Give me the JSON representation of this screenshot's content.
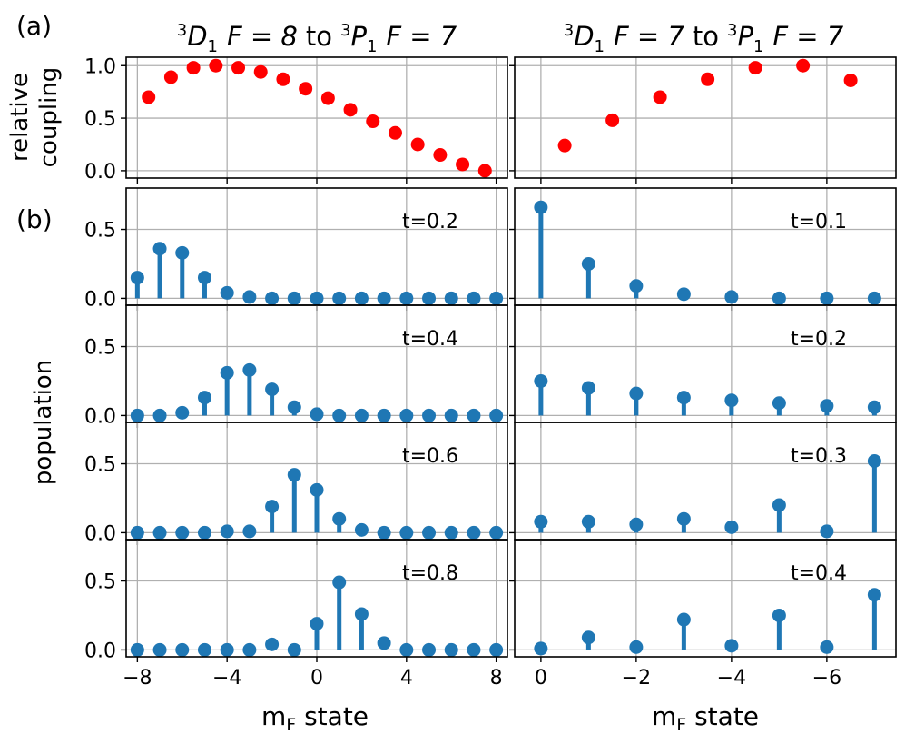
{
  "panel_letters": {
    "a": "(a)",
    "b": "(b)"
  },
  "colors": {
    "coupling": "#ff0000",
    "population": "#1f77b4",
    "grid": "#b0b0b0",
    "axis": "#000000"
  },
  "left_title": {
    "sup1": "3",
    "d": "D",
    "sub1": "1",
    "f1": "F = 8",
    "to": "to",
    "sup2": "3",
    "p": "P",
    "sub2": "1",
    "f2": "F = 7"
  },
  "right_title": {
    "sup1": "3",
    "d": "D",
    "sub1": "1",
    "f1": "F = 7",
    "to": "to",
    "sup2": "3",
    "p": "P",
    "sub2": "1",
    "f2": "F = 7"
  },
  "ylabel_coupling": {
    "line1": "relative",
    "line2": "coupling"
  },
  "ylabel_population": "population",
  "xlabel": {
    "m": "m",
    "sub": "F",
    "rest": " state"
  },
  "chart_data": [
    {
      "id": "a-left",
      "type": "scatter",
      "title": "3D1 F=8 to 3P1 F=7",
      "ylabel": "relative coupling",
      "xlim": [
        -8.5,
        8.5
      ],
      "ylim": [
        -0.07,
        1.08
      ],
      "xticks": [
        -8,
        -4,
        0,
        4,
        8
      ],
      "yticks": [
        0.0,
        0.5,
        1.0
      ],
      "yticklabels": [
        "0.0",
        "0.5",
        "1.0"
      ],
      "x": [
        -7.5,
        -6.5,
        -5.5,
        -4.5,
        -3.5,
        -2.5,
        -1.5,
        -0.5,
        0.5,
        1.5,
        2.5,
        3.5,
        4.5,
        5.5,
        6.5,
        7.5
      ],
      "y": [
        0.7,
        0.89,
        0.98,
        1.0,
        0.98,
        0.94,
        0.87,
        0.78,
        0.69,
        0.58,
        0.47,
        0.36,
        0.25,
        0.15,
        0.06,
        0.0
      ]
    },
    {
      "id": "a-right",
      "type": "scatter",
      "title": "3D1 F=7 to 3P1 F=7",
      "xlim": [
        0.55,
        -7.45
      ],
      "ylim": [
        -0.07,
        1.08
      ],
      "xticks": [
        0,
        -2,
        -4,
        -6
      ],
      "yticks": [
        0.0,
        0.5,
        1.0
      ],
      "x": [
        -0.5,
        -1.5,
        -2.5,
        -3.5,
        -4.5,
        -5.5,
        -6.5
      ],
      "y": [
        0.24,
        0.48,
        0.7,
        0.87,
        0.98,
        1.0,
        0.86
      ]
    },
    {
      "id": "b-left-1",
      "type": "stem",
      "label": "t=0.2",
      "ylabel": "population",
      "xlim": [
        -8.5,
        8.5
      ],
      "ylim": [
        -0.05,
        0.8
      ],
      "xticks": [
        -8,
        -4,
        0,
        4,
        8
      ],
      "yticks": [
        0.0,
        0.5
      ],
      "yticklabels": [
        "0.0",
        "0.5"
      ],
      "x": [
        -8,
        -7,
        -6,
        -5,
        -4,
        -3,
        -2,
        -1,
        0,
        1,
        2,
        3,
        4,
        5,
        6,
        7,
        8
      ],
      "y": [
        0.15,
        0.36,
        0.33,
        0.15,
        0.04,
        0.01,
        0.0,
        0.0,
        0.0,
        0.0,
        0.0,
        0.0,
        0.0,
        0.0,
        0.0,
        0.0,
        0.0
      ]
    },
    {
      "id": "b-left-2",
      "type": "stem",
      "label": "t=0.4",
      "xlim": [
        -8.5,
        8.5
      ],
      "ylim": [
        -0.05,
        0.8
      ],
      "xticks": [
        -8,
        -4,
        0,
        4,
        8
      ],
      "yticks": [
        0.0,
        0.5
      ],
      "yticklabels": [
        "0.0",
        "0.5"
      ],
      "x": [
        -8,
        -7,
        -6,
        -5,
        -4,
        -3,
        -2,
        -1,
        0,
        1,
        2,
        3,
        4,
        5,
        6,
        7,
        8
      ],
      "y": [
        0.0,
        0.0,
        0.02,
        0.13,
        0.31,
        0.33,
        0.19,
        0.06,
        0.01,
        0.0,
        0.0,
        0.0,
        0.0,
        0.0,
        0.0,
        0.0,
        0.0
      ]
    },
    {
      "id": "b-left-3",
      "type": "stem",
      "label": "t=0.6",
      "xlim": [
        -8.5,
        8.5
      ],
      "ylim": [
        -0.05,
        0.8
      ],
      "xticks": [
        -8,
        -4,
        0,
        4,
        8
      ],
      "yticks": [
        0.0,
        0.5
      ],
      "yticklabels": [
        "0.0",
        "0.5"
      ],
      "x": [
        -8,
        -7,
        -6,
        -5,
        -4,
        -3,
        -2,
        -1,
        0,
        1,
        2,
        3,
        4,
        5,
        6,
        7,
        8
      ],
      "y": [
        0.0,
        0.0,
        0.0,
        0.0,
        0.01,
        0.01,
        0.19,
        0.42,
        0.31,
        0.1,
        0.02,
        0.0,
        0.0,
        0.0,
        0.0,
        0.0,
        0.0
      ]
    },
    {
      "id": "b-left-4",
      "type": "stem",
      "label": "t=0.8",
      "xlim": [
        -8.5,
        8.5
      ],
      "ylim": [
        -0.05,
        0.8
      ],
      "xticks": [
        -8,
        -4,
        0,
        4,
        8
      ],
      "xticklabels": [
        "−8",
        "−4",
        "0",
        "4",
        "8"
      ],
      "yticks": [
        0.0,
        0.5
      ],
      "yticklabels": [
        "0.0",
        "0.5"
      ],
      "xlabel": "mF state",
      "x": [
        -8,
        -7,
        -6,
        -5,
        -4,
        -3,
        -2,
        -1,
        0,
        1,
        2,
        3,
        4,
        5,
        6,
        7,
        8
      ],
      "y": [
        0.0,
        0.0,
        0.0,
        0.0,
        0.0,
        0.0,
        0.04,
        0.0,
        0.19,
        0.49,
        0.26,
        0.05,
        0.0,
        0.0,
        0.0,
        0.0,
        0.0
      ]
    },
    {
      "id": "b-right-1",
      "type": "stem",
      "label": "t=0.1",
      "xlim": [
        0.55,
        -7.45
      ],
      "ylim": [
        -0.05,
        0.8
      ],
      "xticks": [
        0,
        -2,
        -4,
        -6
      ],
      "yticks": [
        0.0,
        0.5
      ],
      "x": [
        0,
        -1,
        -2,
        -3,
        -4,
        -5,
        -6,
        -7
      ],
      "y": [
        0.66,
        0.25,
        0.09,
        0.03,
        0.01,
        0.0,
        0.0,
        0.0
      ]
    },
    {
      "id": "b-right-2",
      "type": "stem",
      "label": "t=0.2",
      "xlim": [
        0.55,
        -7.45
      ],
      "ylim": [
        -0.05,
        0.8
      ],
      "xticks": [
        0,
        -2,
        -4,
        -6
      ],
      "yticks": [
        0.0,
        0.5
      ],
      "x": [
        0,
        -1,
        -2,
        -3,
        -4,
        -5,
        -6,
        -7
      ],
      "y": [
        0.25,
        0.2,
        0.16,
        0.13,
        0.11,
        0.09,
        0.07,
        0.06
      ]
    },
    {
      "id": "b-right-3",
      "type": "stem",
      "label": "t=0.3",
      "xlim": [
        0.55,
        -7.45
      ],
      "ylim": [
        -0.05,
        0.8
      ],
      "xticks": [
        0,
        -2,
        -4,
        -6
      ],
      "yticks": [
        0.0,
        0.5
      ],
      "x": [
        0,
        -1,
        -2,
        -3,
        -4,
        -5,
        -6,
        -7
      ],
      "y": [
        0.08,
        0.08,
        0.06,
        0.1,
        0.04,
        0.2,
        0.01,
        0.52
      ]
    },
    {
      "id": "b-right-4",
      "type": "stem",
      "label": "t=0.4",
      "xlim": [
        0.55,
        -7.45
      ],
      "ylim": [
        -0.05,
        0.8
      ],
      "xticks": [
        0,
        -2,
        -4,
        -6
      ],
      "xticklabels": [
        "0",
        "−2",
        "−4",
        "−6"
      ],
      "yticks": [
        0.0,
        0.5
      ],
      "xlabel": "mF state",
      "x": [
        0,
        -1,
        -2,
        -3,
        -4,
        -5,
        -6,
        -7
      ],
      "y": [
        0.01,
        0.09,
        0.02,
        0.22,
        0.03,
        0.25,
        0.02,
        0.4
      ]
    }
  ]
}
